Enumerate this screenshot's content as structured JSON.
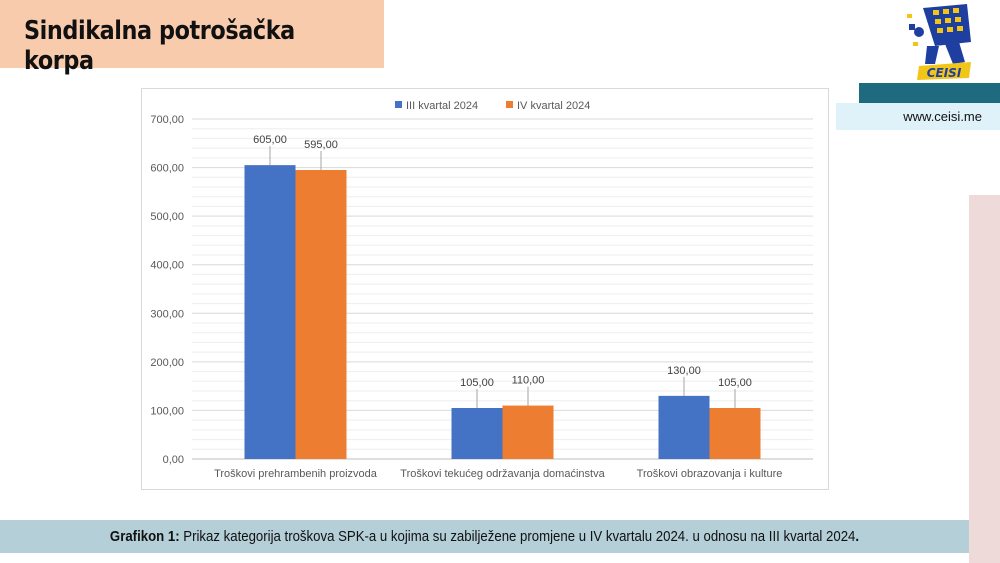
{
  "slide": {
    "title": "Sindikalna potrošačka korpa",
    "url": "www.ceisi.me",
    "logo_text": "CEISI",
    "caption_label": "Grafikon 1:",
    "caption_text": " Prikaz kategorija troškova SPK-a u kojima su zabilježene promjene u IV kvartalu 2024. u odnosu na III kvartal 2024",
    "caption_end": "."
  },
  "chart_data": {
    "type": "bar",
    "title": "",
    "xlabel": "",
    "ylabel": "",
    "ylim": [
      0,
      700
    ],
    "yticks": [
      0,
      100,
      200,
      300,
      400,
      500,
      600,
      700
    ],
    "ytick_labels": [
      "0,00",
      "100,00",
      "200,00",
      "300,00",
      "400,00",
      "500,00",
      "600,00",
      "700,00"
    ],
    "categories": [
      "Troškovi prehrambenih proizvoda",
      "Troškovi tekućeg održavanja domaćinstva",
      "Troškovi obrazovanja i kulture"
    ],
    "series": [
      {
        "name": "III kvartal 2024",
        "color": "#4472c4",
        "values": [
          605,
          105,
          130
        ],
        "labels": [
          "605,00",
          "105,00",
          "130,00"
        ]
      },
      {
        "name": "IV kvartal 2024",
        "color": "#ed7d31",
        "values": [
          595,
          110,
          105
        ],
        "labels": [
          "595,00",
          "110,00",
          "105,00"
        ]
      }
    ],
    "legend_position": "top",
    "grid": true
  }
}
